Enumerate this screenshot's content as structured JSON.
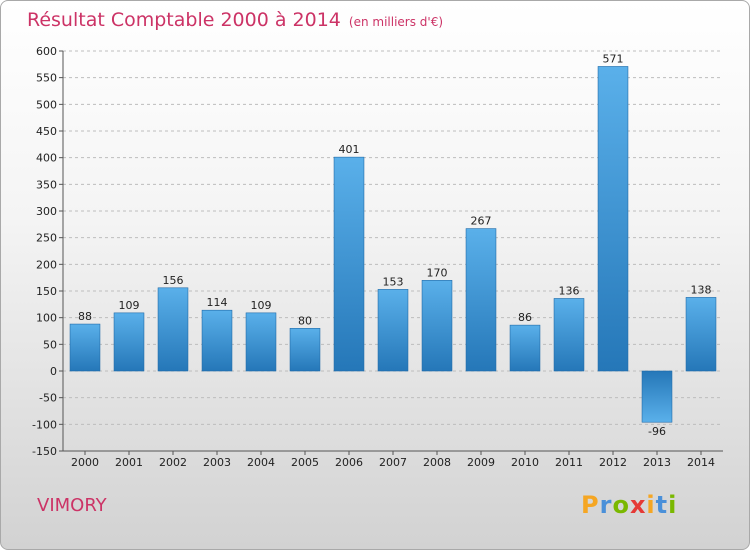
{
  "header": {
    "title": "Résultat Comptable 2000 à 2014",
    "unit": "(en milliers d'€)"
  },
  "commune": "VIMORY",
  "logo": {
    "letters": [
      "P",
      "r",
      "o",
      "x",
      "i",
      "t",
      "i"
    ],
    "colors": [
      "#f5a623",
      "#4a90d9",
      "#7ab800",
      "#e53935",
      "#f5a623",
      "#4a90d9",
      "#7ab800"
    ]
  },
  "colors": {
    "title": "#cc3366",
    "bar_light": "#5ab0ea",
    "bar_dark": "#2577b8",
    "grid": "#bdbdbd"
  },
  "chart_data": {
    "type": "bar",
    "title": "Résultat Comptable 2000 à 2014",
    "xlabel": "",
    "ylabel": "",
    "categories": [
      "2000",
      "2001",
      "2002",
      "2003",
      "2004",
      "2005",
      "2006",
      "2007",
      "2008",
      "2009",
      "2010",
      "2011",
      "2012",
      "2013",
      "2014"
    ],
    "values": [
      88,
      109,
      156,
      114,
      109,
      80,
      401,
      153,
      170,
      267,
      86,
      136,
      571,
      -96,
      138
    ],
    "ylim": [
      -150,
      600
    ],
    "yticks": [
      600,
      550,
      500,
      450,
      400,
      350,
      300,
      250,
      200,
      150,
      100,
      50,
      0,
      -50,
      -100,
      -150
    ],
    "grid": true,
    "grid_style": "dashed horizontal"
  }
}
